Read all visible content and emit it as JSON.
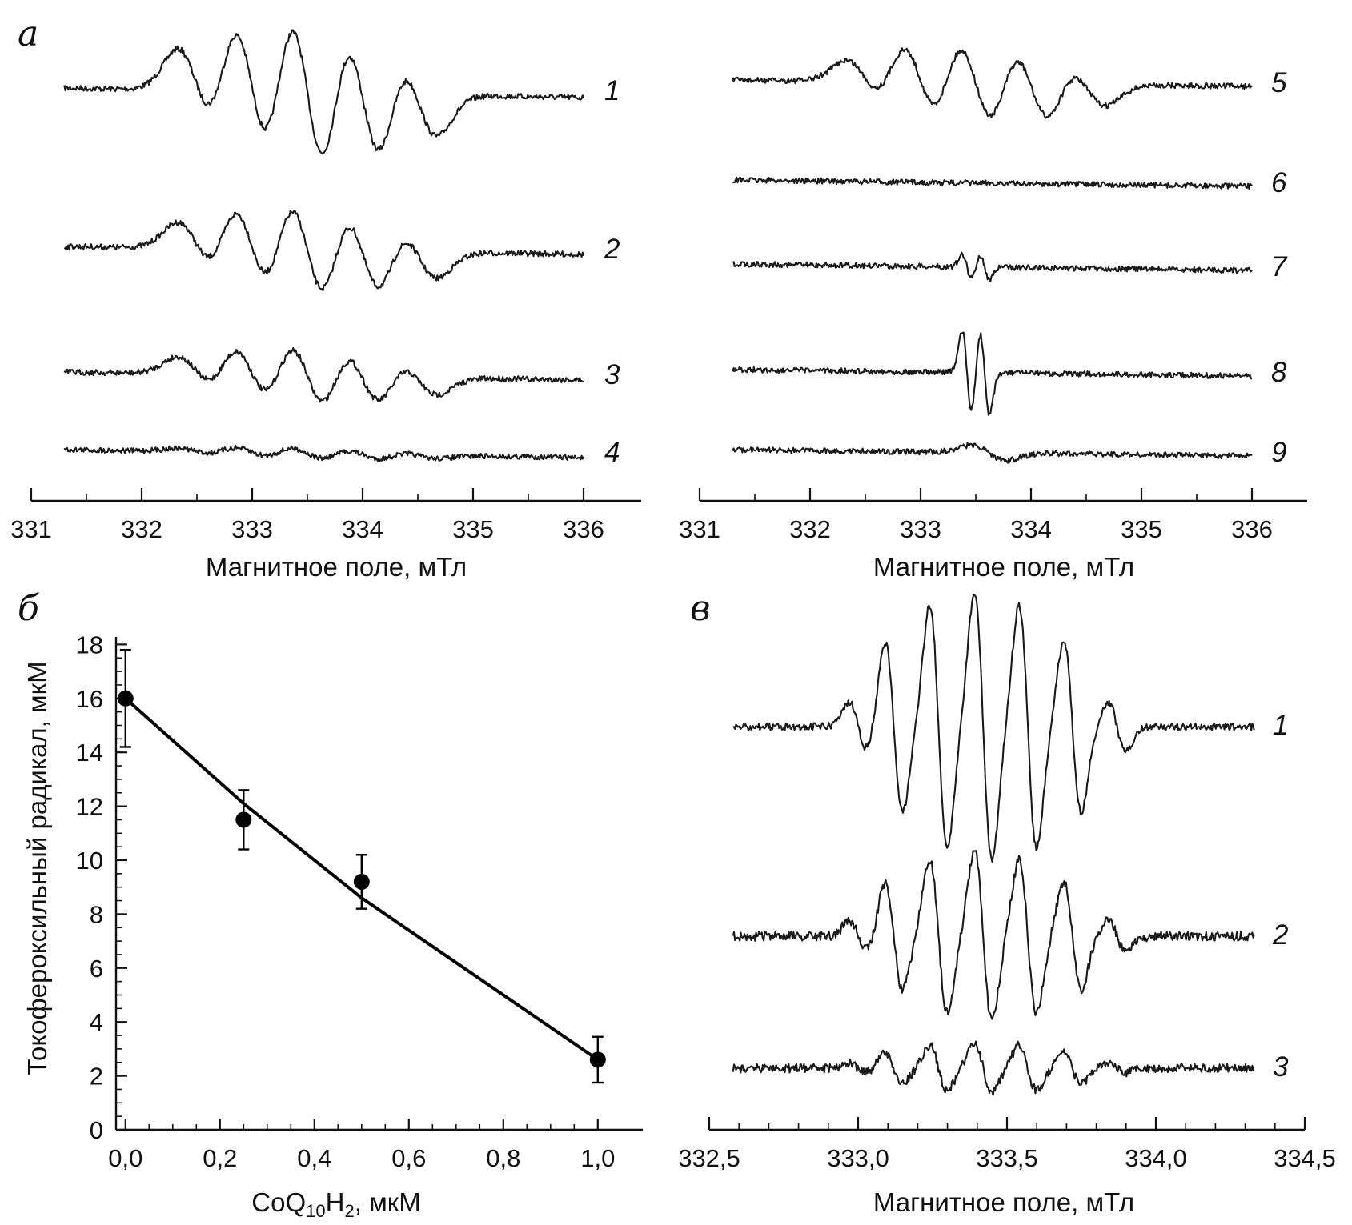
{
  "panels": {
    "a": {
      "label": "а",
      "left": {
        "xlabel": "Магнитное поле, мТл",
        "ticks": [
          "331",
          "332",
          "333",
          "334",
          "335",
          "336"
        ],
        "xlim": [
          331,
          336.3
        ],
        "traces": [
          {
            "name": "1",
            "amplitude": 1.0
          },
          {
            "name": "2",
            "amplitude": 0.72
          },
          {
            "name": "3",
            "amplitude": 0.45
          },
          {
            "name": "4",
            "amplitude": 0.08
          }
        ]
      },
      "right": {
        "xlabel": "Магнитное поле, мТл",
        "ticks": [
          "331",
          "332",
          "333",
          "334",
          "335",
          "336"
        ],
        "xlim": [
          331,
          336.3
        ],
        "traces": [
          {
            "name": "5",
            "amplitude": 0.62
          },
          {
            "name": "6",
            "amplitude": 0.03
          },
          {
            "name": "7",
            "amplitude": 0.18
          },
          {
            "name": "8",
            "amplitude": 0.55
          },
          {
            "name": "9",
            "amplitude": 0.06
          }
        ]
      }
    },
    "b": {
      "label": "б",
      "ylabel": "Токофероксильный радикал, мкМ",
      "xlabel": {
        "base": "CoQ",
        "sub1": "10",
        "mid": "H",
        "sub2": "2",
        "unit": ", мкМ"
      },
      "xticks": [
        "0,0",
        "0,2",
        "0,4",
        "0,6",
        "0,8",
        "1,0"
      ],
      "yticks": [
        "0",
        "2",
        "4",
        "6",
        "8",
        "10",
        "12",
        "14",
        "16",
        "18"
      ]
    },
    "c": {
      "label": "в",
      "xlabel": "Магнитное поле, мТл",
      "ticks": [
        "332,5",
        "333,0",
        "333,5",
        "334,0",
        "334,5"
      ],
      "xlim": [
        332.5,
        334.5
      ],
      "traces": [
        {
          "name": "1",
          "amplitude": 1.0
        },
        {
          "name": "2",
          "amplitude": 0.68
        },
        {
          "name": "3",
          "amplitude": 0.2
        }
      ]
    }
  },
  "chart_data": [
    {
      "type": "line",
      "panel": "а (left)",
      "xlabel": "Магнитное поле, мТл",
      "ylabel": "",
      "xlim": [
        331,
        336.3
      ],
      "series": [
        {
          "name": "1",
          "x": [
            331.3,
            332.5,
            333.0,
            333.5,
            334.0,
            334.5,
            336.0
          ]
        },
        {
          "name": "2",
          "x": [
            331.3,
            332.5,
            333.0,
            333.5,
            334.0,
            334.5,
            336.0
          ]
        },
        {
          "name": "3",
          "x": [
            331.3,
            332.5,
            333.0,
            333.5,
            334.0,
            334.5,
            336.0
          ]
        },
        {
          "name": "4",
          "x": [
            331.3,
            336.0
          ]
        }
      ]
    },
    {
      "type": "line",
      "panel": "а (right)",
      "xlabel": "Магнитное поле, мТл",
      "ylabel": "",
      "xlim": [
        331,
        336.3
      ],
      "series": [
        {
          "name": "5",
          "x": [
            331.3,
            332.5,
            333.0,
            333.5,
            334.0,
            334.5,
            336.0
          ]
        },
        {
          "name": "6",
          "x": [
            331.3,
            336.0
          ]
        },
        {
          "name": "7",
          "x": [
            331.3,
            333.4,
            333.7,
            336.0
          ]
        },
        {
          "name": "8",
          "x": [
            331.3,
            333.4,
            333.7,
            336.0
          ]
        },
        {
          "name": "9",
          "x": [
            331.3,
            333.6,
            336.0
          ]
        }
      ]
    },
    {
      "type": "scatter",
      "panel": "б",
      "xlabel": "CoQ10H2, мкМ",
      "ylabel": "Токофероксильный радикал, мкМ",
      "xlim": [
        -0.02,
        1.1
      ],
      "ylim": [
        0,
        18
      ],
      "x": [
        0.0,
        0.25,
        0.5,
        1.0
      ],
      "y": [
        16.0,
        11.5,
        9.2,
        2.6
      ],
      "yerr": [
        1.8,
        1.1,
        1.0,
        0.85
      ],
      "fit": {
        "x": [
          0.0,
          0.25,
          0.5,
          1.0
        ],
        "y": [
          16.0,
          12.1,
          8.6,
          2.6
        ]
      },
      "grid": false
    },
    {
      "type": "line",
      "panel": "в",
      "xlabel": "Магнитное поле, мТл",
      "ylabel": "",
      "xlim": [
        332.5,
        334.5
      ],
      "series": [
        {
          "name": "1",
          "x": [
            332.58,
            333.0,
            333.2,
            333.5,
            333.8,
            334.33
          ]
        },
        {
          "name": "2",
          "x": [
            332.58,
            333.0,
            333.2,
            333.5,
            333.8,
            334.33
          ]
        },
        {
          "name": "3",
          "x": [
            332.58,
            333.2,
            333.5,
            334.33
          ]
        }
      ]
    }
  ]
}
